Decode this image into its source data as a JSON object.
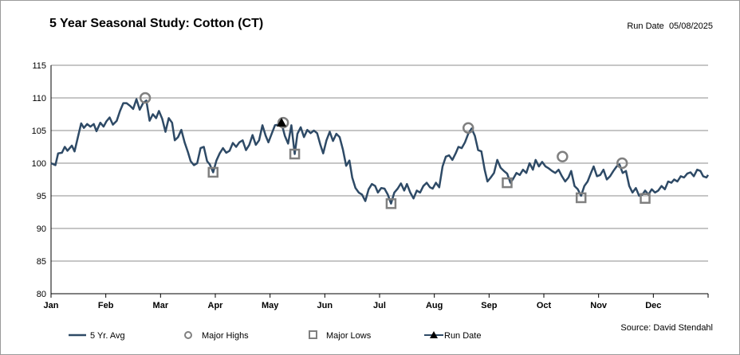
{
  "header": {
    "title": "5 Year Seasonal Study: Cotton (CT)",
    "run_date_label": "Run Date",
    "run_date_value": "05/08/2025",
    "source": "Source: David Stendahl"
  },
  "legend": {
    "avg": "5 Yr. Avg",
    "highs": "Major Highs",
    "lows": "Major Lows",
    "run": "Run Date"
  },
  "colors": {
    "line": "#2e4a66",
    "marker": "#808080",
    "grid": "#8c8c8c"
  },
  "chart_data": {
    "type": "line",
    "title": "5 Year Seasonal Study: Cotton (CT)",
    "xlim": [
      0,
      12
    ],
    "ylim": [
      80,
      115
    ],
    "yticks": [
      80,
      85,
      90,
      95,
      100,
      105,
      110,
      115
    ],
    "x_ticks": [
      {
        "label": "Jan",
        "pos": 0
      },
      {
        "label": "Feb",
        "pos": 1
      },
      {
        "label": "Mar",
        "pos": 2
      },
      {
        "label": "Apr",
        "pos": 3
      },
      {
        "label": "May",
        "pos": 4
      },
      {
        "label": "Jun",
        "pos": 5
      },
      {
        "label": "Jul",
        "pos": 6
      },
      {
        "label": "Aug",
        "pos": 7
      },
      {
        "label": "Sep",
        "pos": 8
      },
      {
        "label": "Oct",
        "pos": 9
      },
      {
        "label": "Nov",
        "pos": 10
      },
      {
        "label": "Dec",
        "pos": 11
      }
    ],
    "series": [
      {
        "name": "5 Yr. Avg",
        "points": [
          [
            0.0,
            100.0
          ],
          [
            0.08,
            99.7
          ],
          [
            0.13,
            101.5
          ],
          [
            0.2,
            101.6
          ],
          [
            0.25,
            102.5
          ],
          [
            0.3,
            101.9
          ],
          [
            0.38,
            102.7
          ],
          [
            0.43,
            101.8
          ],
          [
            0.5,
            104.3
          ],
          [
            0.55,
            106.1
          ],
          [
            0.6,
            105.4
          ],
          [
            0.66,
            106.0
          ],
          [
            0.72,
            105.6
          ],
          [
            0.78,
            106.0
          ],
          [
            0.83,
            104.9
          ],
          [
            0.9,
            106.2
          ],
          [
            0.96,
            105.6
          ],
          [
            1.01,
            106.4
          ],
          [
            1.07,
            107.0
          ],
          [
            1.13,
            105.9
          ],
          [
            1.2,
            106.5
          ],
          [
            1.26,
            108.0
          ],
          [
            1.32,
            109.2
          ],
          [
            1.38,
            109.2
          ],
          [
            1.44,
            108.8
          ],
          [
            1.5,
            108.3
          ],
          [
            1.56,
            109.8
          ],
          [
            1.62,
            108.2
          ],
          [
            1.68,
            109.2
          ],
          [
            1.74,
            109.6
          ],
          [
            1.8,
            106.5
          ],
          [
            1.86,
            107.5
          ],
          [
            1.92,
            106.9
          ],
          [
            1.97,
            108.0
          ],
          [
            2.03,
            106.8
          ],
          [
            2.09,
            104.8
          ],
          [
            2.15,
            106.9
          ],
          [
            2.21,
            106.2
          ],
          [
            2.26,
            103.5
          ],
          [
            2.32,
            104.0
          ],
          [
            2.38,
            105.1
          ],
          [
            2.44,
            103.2
          ],
          [
            2.5,
            101.7
          ],
          [
            2.55,
            100.3
          ],
          [
            2.61,
            99.7
          ],
          [
            2.67,
            100.0
          ],
          [
            2.73,
            102.3
          ],
          [
            2.79,
            102.5
          ],
          [
            2.85,
            100.3
          ],
          [
            2.9,
            99.8
          ],
          [
            2.96,
            98.6
          ],
          [
            3.02,
            100.4
          ],
          [
            3.08,
            101.5
          ],
          [
            3.14,
            102.3
          ],
          [
            3.2,
            101.6
          ],
          [
            3.26,
            101.9
          ],
          [
            3.32,
            103.1
          ],
          [
            3.38,
            102.5
          ],
          [
            3.44,
            103.2
          ],
          [
            3.5,
            103.5
          ],
          [
            3.56,
            102.0
          ],
          [
            3.62,
            102.8
          ],
          [
            3.68,
            104.3
          ],
          [
            3.74,
            102.8
          ],
          [
            3.8,
            103.5
          ],
          [
            3.86,
            105.8
          ],
          [
            3.92,
            104.2
          ],
          [
            3.97,
            103.2
          ],
          [
            4.03,
            104.5
          ],
          [
            4.09,
            105.8
          ],
          [
            4.15,
            105.9
          ],
          [
            4.21,
            106.1
          ],
          [
            4.27,
            104.2
          ],
          [
            4.33,
            103.0
          ],
          [
            4.39,
            105.8
          ],
          [
            4.45,
            101.4
          ],
          [
            4.5,
            104.5
          ],
          [
            4.56,
            105.5
          ],
          [
            4.62,
            104.0
          ],
          [
            4.68,
            105.1
          ],
          [
            4.74,
            104.6
          ],
          [
            4.8,
            105.0
          ],
          [
            4.86,
            104.6
          ],
          [
            4.92,
            102.8
          ],
          [
            4.97,
            101.5
          ],
          [
            5.03,
            103.5
          ],
          [
            5.09,
            104.8
          ],
          [
            5.15,
            103.4
          ],
          [
            5.21,
            104.5
          ],
          [
            5.27,
            104.0
          ],
          [
            5.33,
            102.1
          ],
          [
            5.39,
            99.6
          ],
          [
            5.45,
            100.4
          ],
          [
            5.5,
            97.8
          ],
          [
            5.56,
            96.2
          ],
          [
            5.62,
            95.5
          ],
          [
            5.68,
            95.2
          ],
          [
            5.74,
            94.2
          ],
          [
            5.8,
            96.0
          ],
          [
            5.86,
            96.8
          ],
          [
            5.92,
            96.5
          ],
          [
            5.97,
            95.5
          ],
          [
            6.03,
            96.2
          ],
          [
            6.09,
            96.1
          ],
          [
            6.15,
            95.2
          ],
          [
            6.21,
            93.8
          ],
          [
            6.27,
            95.5
          ],
          [
            6.33,
            96.1
          ],
          [
            6.39,
            96.9
          ],
          [
            6.45,
            95.8
          ],
          [
            6.5,
            96.8
          ],
          [
            6.56,
            95.5
          ],
          [
            6.62,
            94.6
          ],
          [
            6.68,
            95.8
          ],
          [
            6.74,
            95.5
          ],
          [
            6.8,
            96.5
          ],
          [
            6.86,
            97.0
          ],
          [
            6.92,
            96.3
          ],
          [
            6.97,
            96.1
          ],
          [
            7.03,
            97.0
          ],
          [
            7.09,
            96.3
          ],
          [
            7.15,
            99.5
          ],
          [
            7.21,
            101.0
          ],
          [
            7.27,
            101.2
          ],
          [
            7.33,
            100.5
          ],
          [
            7.39,
            101.5
          ],
          [
            7.44,
            102.5
          ],
          [
            7.5,
            102.3
          ],
          [
            7.56,
            103.2
          ],
          [
            7.62,
            104.5
          ],
          [
            7.68,
            105.3
          ],
          [
            7.74,
            104.2
          ],
          [
            7.8,
            102.0
          ],
          [
            7.86,
            101.8
          ],
          [
            7.92,
            99.0
          ],
          [
            7.97,
            97.2
          ],
          [
            8.03,
            97.8
          ],
          [
            8.09,
            98.5
          ],
          [
            8.15,
            100.5
          ],
          [
            8.21,
            99.3
          ],
          [
            8.27,
            98.8
          ],
          [
            8.33,
            98.4
          ],
          [
            8.39,
            97.0
          ],
          [
            8.44,
            97.6
          ],
          [
            8.5,
            98.5
          ],
          [
            8.56,
            98.2
          ],
          [
            8.62,
            99.0
          ],
          [
            8.68,
            98.5
          ],
          [
            8.74,
            100.0
          ],
          [
            8.8,
            99.0
          ],
          [
            8.85,
            100.5
          ],
          [
            8.91,
            99.5
          ],
          [
            8.97,
            100.2
          ],
          [
            9.03,
            99.5
          ],
          [
            9.09,
            99.2
          ],
          [
            9.15,
            98.8
          ],
          [
            9.21,
            98.5
          ],
          [
            9.27,
            99.0
          ],
          [
            9.33,
            98.0
          ],
          [
            9.39,
            97.2
          ],
          [
            9.45,
            97.8
          ],
          [
            9.5,
            98.8
          ],
          [
            9.56,
            96.5
          ],
          [
            9.62,
            96.0
          ],
          [
            9.68,
            95.0
          ],
          [
            9.74,
            96.5
          ],
          [
            9.8,
            97.2
          ],
          [
            9.86,
            98.5
          ],
          [
            9.91,
            99.5
          ],
          [
            9.97,
            98.0
          ],
          [
            10.03,
            98.2
          ],
          [
            10.09,
            99.0
          ],
          [
            10.15,
            97.5
          ],
          [
            10.21,
            98.0
          ],
          [
            10.27,
            98.8
          ],
          [
            10.33,
            99.5
          ],
          [
            10.38,
            99.8
          ],
          [
            10.44,
            98.5
          ],
          [
            10.5,
            98.8
          ],
          [
            10.56,
            96.5
          ],
          [
            10.62,
            95.5
          ],
          [
            10.68,
            96.2
          ],
          [
            10.74,
            95.0
          ],
          [
            10.8,
            95.2
          ],
          [
            10.85,
            95.8
          ],
          [
            10.91,
            95.2
          ],
          [
            10.97,
            96.0
          ],
          [
            11.03,
            95.5
          ],
          [
            11.09,
            95.8
          ],
          [
            11.15,
            96.5
          ],
          [
            11.21,
            96.0
          ],
          [
            11.27,
            97.2
          ],
          [
            11.33,
            97.0
          ],
          [
            11.38,
            97.5
          ],
          [
            11.44,
            97.2
          ],
          [
            11.5,
            98.0
          ],
          [
            11.56,
            97.8
          ],
          [
            11.62,
            98.4
          ],
          [
            11.68,
            98.6
          ],
          [
            11.74,
            98.0
          ],
          [
            11.8,
            99.0
          ],
          [
            11.86,
            98.8
          ],
          [
            11.91,
            98.0
          ],
          [
            11.97,
            97.8
          ],
          [
            12.0,
            98.2
          ]
        ]
      }
    ],
    "major_highs": [
      [
        1.72,
        110.0
      ],
      [
        4.24,
        106.2
      ],
      [
        7.62,
        105.4
      ],
      [
        9.34,
        101.0
      ],
      [
        10.43,
        100.0
      ]
    ],
    "major_lows": [
      [
        2.96,
        98.6
      ],
      [
        4.45,
        101.4
      ],
      [
        6.21,
        93.8
      ],
      [
        8.33,
        97.0
      ],
      [
        9.68,
        94.7
      ],
      [
        10.85,
        94.6
      ]
    ],
    "run_date_point": [
      4.21,
      106.1
    ]
  }
}
